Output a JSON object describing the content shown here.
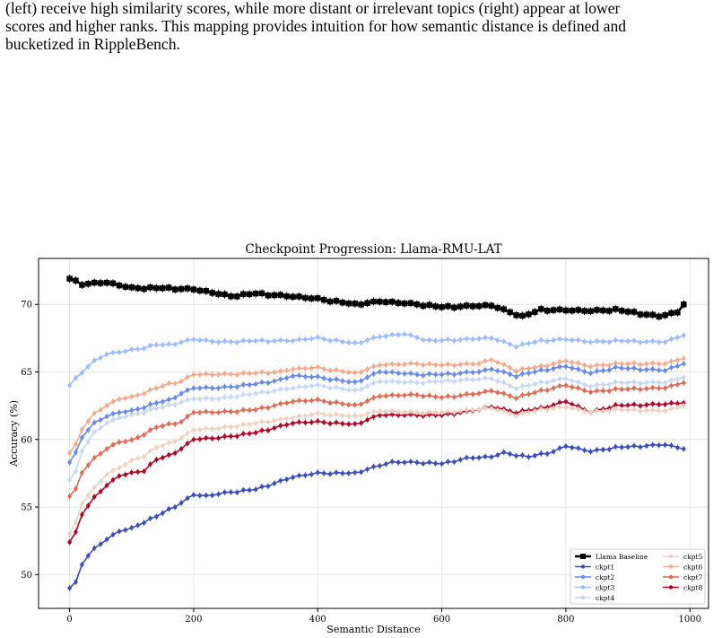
{
  "caption": {
    "line1": "(left) receive high similarity scores, while more distant or irrelevant topics (right) appear at lower",
    "line2": "scores and higher ranks. This mapping provides intuition for how semantic distance is defined and",
    "line3": "bucketized in RippleBench."
  },
  "chart_data": {
    "type": "line",
    "title": "Checkpoint Progression: Llama-RMU-LAT",
    "xlabel": "Semantic Distance",
    "ylabel": "Accuracy (%)",
    "xlim": [
      -50,
      1030
    ],
    "ylim": [
      47.5,
      73.4
    ],
    "xticks": [
      0,
      200,
      400,
      600,
      800,
      1000
    ],
    "yticks": [
      50,
      55,
      60,
      65,
      70
    ],
    "grid": true,
    "legend_position": "lower-right",
    "error_bars": true,
    "x_step": 10,
    "x": [
      0,
      10,
      20,
      30,
      40,
      50,
      60,
      70,
      80,
      90,
      100,
      110,
      120,
      130,
      140,
      150,
      160,
      170,
      180,
      190,
      200,
      210,
      220,
      230,
      240,
      250,
      260,
      270,
      280,
      290,
      300,
      310,
      320,
      330,
      340,
      350,
      360,
      370,
      380,
      390,
      400,
      410,
      420,
      430,
      440,
      450,
      460,
      470,
      480,
      490,
      500,
      510,
      520,
      530,
      540,
      550,
      560,
      570,
      580,
      590,
      600,
      610,
      620,
      630,
      640,
      650,
      660,
      670,
      680,
      690,
      700,
      710,
      720,
      730,
      740,
      750,
      760,
      770,
      780,
      790,
      800,
      810,
      820,
      830,
      840,
      850,
      860,
      870,
      880,
      890,
      900,
      910,
      920,
      930,
      940,
      950,
      960,
      970,
      980,
      990
    ],
    "series": [
      {
        "name": "Llama Baseline",
        "color": "#000000",
        "marker": "square",
        "keypoints": [
          [
            0,
            71.9
          ],
          [
            20,
            71.5
          ],
          [
            60,
            71.6
          ],
          [
            100,
            71.2
          ],
          [
            150,
            71.2
          ],
          [
            200,
            71.1
          ],
          [
            260,
            70.6
          ],
          [
            300,
            70.8
          ],
          [
            400,
            70.4
          ],
          [
            460,
            70.0
          ],
          [
            500,
            70.2
          ],
          [
            560,
            70.0
          ],
          [
            600,
            69.8
          ],
          [
            680,
            69.9
          ],
          [
            730,
            69.1
          ],
          [
            760,
            69.6
          ],
          [
            840,
            69.5
          ],
          [
            880,
            69.6
          ],
          [
            950,
            69.1
          ],
          [
            980,
            69.4
          ],
          [
            990,
            70.0
          ]
        ]
      },
      {
        "name": "ckpt1",
        "color": "#3b4cc0",
        "marker": "circle",
        "keypoints": [
          [
            0,
            49.0
          ],
          [
            10,
            49.4
          ],
          [
            20,
            50.8
          ],
          [
            30,
            51.4
          ],
          [
            40,
            51.9
          ],
          [
            60,
            52.6
          ],
          [
            80,
            53.2
          ],
          [
            100,
            53.4
          ],
          [
            120,
            53.9
          ],
          [
            140,
            54.3
          ],
          [
            160,
            54.8
          ],
          [
            180,
            55.3
          ],
          [
            200,
            55.9
          ],
          [
            220,
            55.8
          ],
          [
            260,
            56.1
          ],
          [
            300,
            56.3
          ],
          [
            340,
            56.9
          ],
          [
            360,
            57.2
          ],
          [
            400,
            57.5
          ],
          [
            460,
            57.5
          ],
          [
            480,
            57.8
          ],
          [
            520,
            58.3
          ],
          [
            560,
            58.3
          ],
          [
            600,
            58.2
          ],
          [
            640,
            58.6
          ],
          [
            680,
            58.7
          ],
          [
            700,
            59.0
          ],
          [
            740,
            58.7
          ],
          [
            780,
            59.1
          ],
          [
            800,
            59.5
          ],
          [
            840,
            59.1
          ],
          [
            880,
            59.4
          ],
          [
            960,
            59.6
          ],
          [
            990,
            59.3
          ]
        ]
      },
      {
        "name": "ckpt2",
        "color": "#6788ee",
        "marker": "circle",
        "keypoints": [
          [
            0,
            58.3
          ],
          [
            10,
            59.0
          ],
          [
            20,
            60.2
          ],
          [
            40,
            61.2
          ],
          [
            60,
            61.7
          ],
          [
            80,
            62.0
          ],
          [
            100,
            62.1
          ],
          [
            140,
            62.7
          ],
          [
            160,
            62.9
          ],
          [
            180,
            63.4
          ],
          [
            200,
            63.8
          ],
          [
            240,
            63.8
          ],
          [
            300,
            64.1
          ],
          [
            340,
            64.4
          ],
          [
            360,
            64.7
          ],
          [
            400,
            64.6
          ],
          [
            460,
            64.2
          ],
          [
            500,
            65.0
          ],
          [
            560,
            64.8
          ],
          [
            600,
            64.8
          ],
          [
            660,
            65.0
          ],
          [
            680,
            65.2
          ],
          [
            720,
            64.7
          ],
          [
            760,
            65.1
          ],
          [
            800,
            65.4
          ],
          [
            840,
            64.9
          ],
          [
            880,
            65.3
          ],
          [
            960,
            65.1
          ],
          [
            990,
            65.6
          ]
        ]
      },
      {
        "name": "ckpt3",
        "color": "#9abbff",
        "marker": "circle",
        "keypoints": [
          [
            0,
            64.0
          ],
          [
            10,
            64.5
          ],
          [
            20,
            65.0
          ],
          [
            40,
            65.8
          ],
          [
            60,
            66.3
          ],
          [
            100,
            66.6
          ],
          [
            140,
            67.0
          ],
          [
            160,
            67.0
          ],
          [
            200,
            67.4
          ],
          [
            240,
            67.2
          ],
          [
            300,
            67.3
          ],
          [
            360,
            67.3
          ],
          [
            400,
            67.5
          ],
          [
            460,
            67.1
          ],
          [
            500,
            67.6
          ],
          [
            540,
            67.8
          ],
          [
            580,
            67.3
          ],
          [
            640,
            67.4
          ],
          [
            680,
            67.5
          ],
          [
            720,
            66.9
          ],
          [
            760,
            67.3
          ],
          [
            800,
            67.4
          ],
          [
            840,
            67.2
          ],
          [
            880,
            67.3
          ],
          [
            960,
            67.2
          ],
          [
            990,
            67.7
          ]
        ]
      },
      {
        "name": "ckpt4",
        "color": "#c9d7f0",
        "marker": "circle",
        "keypoints": [
          [
            0,
            57.0
          ],
          [
            10,
            57.6
          ],
          [
            20,
            59.2
          ],
          [
            40,
            60.5
          ],
          [
            60,
            61.2
          ],
          [
            80,
            61.6
          ],
          [
            100,
            61.8
          ],
          [
            140,
            62.3
          ],
          [
            160,
            62.5
          ],
          [
            200,
            63.0
          ],
          [
            240,
            63.0
          ],
          [
            300,
            63.4
          ],
          [
            360,
            63.8
          ],
          [
            400,
            64.0
          ],
          [
            460,
            63.6
          ],
          [
            500,
            64.3
          ],
          [
            560,
            64.2
          ],
          [
            600,
            64.3
          ],
          [
            680,
            64.5
          ],
          [
            720,
            63.8
          ],
          [
            760,
            64.2
          ],
          [
            800,
            64.5
          ],
          [
            840,
            63.9
          ],
          [
            880,
            64.2
          ],
          [
            960,
            64.2
          ],
          [
            990,
            64.6
          ]
        ]
      },
      {
        "name": "ckpt5",
        "color": "#edd1c2",
        "marker": "circle",
        "keypoints": [
          [
            0,
            53.0
          ],
          [
            10,
            53.8
          ],
          [
            20,
            55.3
          ],
          [
            40,
            56.4
          ],
          [
            60,
            57.4
          ],
          [
            80,
            57.9
          ],
          [
            100,
            58.4
          ],
          [
            120,
            58.8
          ],
          [
            140,
            59.4
          ],
          [
            160,
            59.7
          ],
          [
            180,
            60.1
          ],
          [
            200,
            60.7
          ],
          [
            240,
            60.8
          ],
          [
            300,
            61.2
          ],
          [
            360,
            61.6
          ],
          [
            400,
            61.9
          ],
          [
            460,
            61.7
          ],
          [
            500,
            62.1
          ],
          [
            560,
            62.0
          ],
          [
            600,
            62.0
          ],
          [
            680,
            62.3
          ],
          [
            720,
            61.8
          ],
          [
            760,
            62.2
          ],
          [
            800,
            62.4
          ],
          [
            840,
            62.0
          ],
          [
            880,
            62.2
          ],
          [
            960,
            62.1
          ],
          [
            990,
            62.5
          ]
        ]
      },
      {
        "name": "ckpt6",
        "color": "#f7a889",
        "marker": "circle",
        "keypoints": [
          [
            0,
            59.0
          ],
          [
            10,
            59.6
          ],
          [
            20,
            60.8
          ],
          [
            40,
            61.9
          ],
          [
            60,
            62.5
          ],
          [
            80,
            63.0
          ],
          [
            100,
            63.1
          ],
          [
            140,
            63.8
          ],
          [
            160,
            64.1
          ],
          [
            180,
            64.3
          ],
          [
            200,
            64.8
          ],
          [
            240,
            64.8
          ],
          [
            300,
            64.9
          ],
          [
            340,
            65.0
          ],
          [
            360,
            65.2
          ],
          [
            400,
            65.3
          ],
          [
            460,
            64.9
          ],
          [
            500,
            65.5
          ],
          [
            560,
            65.6
          ],
          [
            600,
            65.5
          ],
          [
            660,
            65.6
          ],
          [
            680,
            65.9
          ],
          [
            720,
            65.1
          ],
          [
            760,
            65.4
          ],
          [
            800,
            65.8
          ],
          [
            840,
            65.4
          ],
          [
            880,
            65.6
          ],
          [
            960,
            65.6
          ],
          [
            990,
            66.0
          ]
        ]
      },
      {
        "name": "ckpt7",
        "color": "#e26952",
        "marker": "circle",
        "keypoints": [
          [
            0,
            55.8
          ],
          [
            10,
            56.3
          ],
          [
            20,
            57.6
          ],
          [
            40,
            58.6
          ],
          [
            60,
            59.3
          ],
          [
            80,
            59.8
          ],
          [
            100,
            59.9
          ],
          [
            140,
            60.9
          ],
          [
            160,
            61.1
          ],
          [
            180,
            61.3
          ],
          [
            200,
            62.0
          ],
          [
            240,
            62.0
          ],
          [
            300,
            62.2
          ],
          [
            360,
            62.8
          ],
          [
            400,
            62.9
          ],
          [
            460,
            62.5
          ],
          [
            500,
            63.2
          ],
          [
            560,
            63.3
          ],
          [
            600,
            63.1
          ],
          [
            660,
            63.4
          ],
          [
            680,
            63.6
          ],
          [
            720,
            63.1
          ],
          [
            760,
            63.6
          ],
          [
            800,
            64.0
          ],
          [
            840,
            63.5
          ],
          [
            880,
            63.7
          ],
          [
            960,
            63.8
          ],
          [
            990,
            64.2
          ]
        ]
      },
      {
        "name": "ckpt8",
        "color": "#b40426",
        "marker": "circle",
        "keypoints": [
          [
            0,
            52.4
          ],
          [
            10,
            53.1
          ],
          [
            20,
            54.5
          ],
          [
            40,
            55.7
          ],
          [
            60,
            56.6
          ],
          [
            80,
            57.3
          ],
          [
            100,
            57.5
          ],
          [
            120,
            57.7
          ],
          [
            140,
            58.5
          ],
          [
            160,
            58.8
          ],
          [
            180,
            59.3
          ],
          [
            200,
            60.0
          ],
          [
            240,
            60.1
          ],
          [
            300,
            60.5
          ],
          [
            360,
            61.2
          ],
          [
            400,
            61.3
          ],
          [
            460,
            61.1
          ],
          [
            500,
            61.8
          ],
          [
            560,
            61.8
          ],
          [
            600,
            61.8
          ],
          [
            660,
            62.2
          ],
          [
            680,
            62.4
          ],
          [
            720,
            62.0
          ],
          [
            760,
            62.3
          ],
          [
            800,
            62.8
          ],
          [
            840,
            62.0
          ],
          [
            880,
            62.5
          ],
          [
            960,
            62.6
          ],
          [
            990,
            62.7
          ]
        ]
      }
    ]
  }
}
